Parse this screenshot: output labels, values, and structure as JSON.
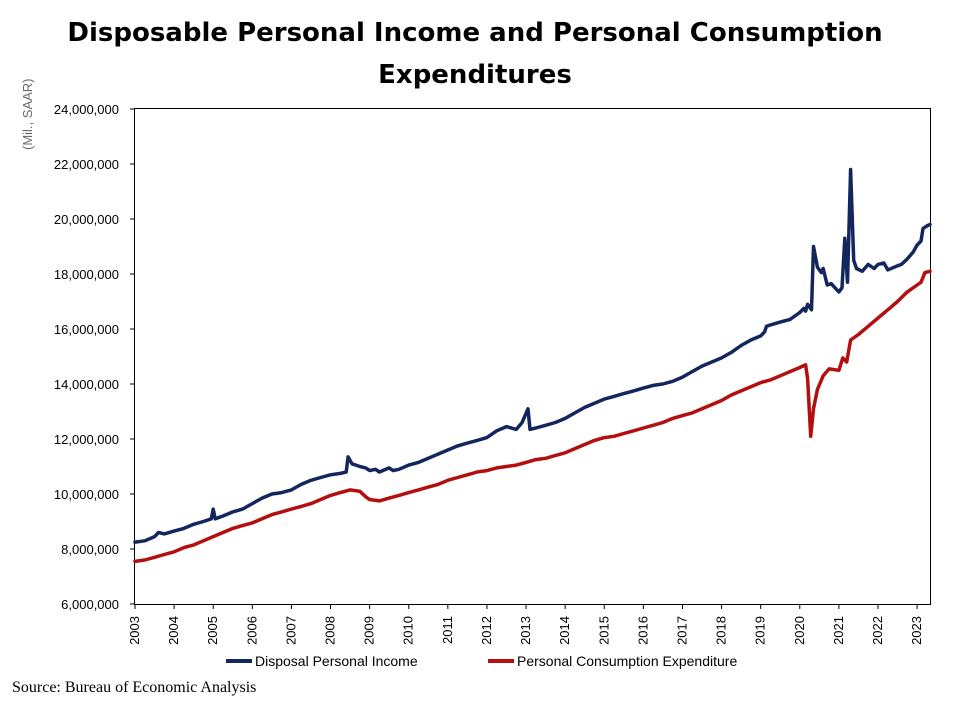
{
  "chart_data": {
    "type": "line",
    "title": "Disposable Personal Income and Personal Consumption Expenditures",
    "ylabel": "(Mil., SAAR)",
    "xlabel": "",
    "ylim": [
      6000000,
      24000000
    ],
    "xlim": [
      2003.0,
      2023.33
    ],
    "yticks": [
      "6,000,000",
      "8,000,000",
      "10,000,000",
      "12,000,000",
      "14,000,000",
      "16,000,000",
      "18,000,000",
      "20,000,000",
      "22,000,000",
      "24,000,000"
    ],
    "ytick_values": [
      6000000,
      8000000,
      10000000,
      12000000,
      14000000,
      16000000,
      18000000,
      20000000,
      22000000,
      24000000
    ],
    "xticks": [
      "2003",
      "2004",
      "2005",
      "2006",
      "2007",
      "2008",
      "2009",
      "2010",
      "2011",
      "2012",
      "2013",
      "2014",
      "2015",
      "2016",
      "2017",
      "2018",
      "2019",
      "2020",
      "2021",
      "2022",
      "2023"
    ],
    "grid": false,
    "legend": "bottom",
    "series": [
      {
        "name": "Disposal Personal Income",
        "color": "#13275e",
        "points": [
          [
            2003.0,
            8250000
          ],
          [
            2003.25,
            8300000
          ],
          [
            2003.5,
            8450000
          ],
          [
            2003.6,
            8600000
          ],
          [
            2003.75,
            8550000
          ],
          [
            2004.0,
            8650000
          ],
          [
            2004.25,
            8750000
          ],
          [
            2004.5,
            8900000
          ],
          [
            2004.75,
            9000000
          ],
          [
            2004.95,
            9100000
          ],
          [
            2005.0,
            9450000
          ],
          [
            2005.05,
            9100000
          ],
          [
            2005.25,
            9200000
          ],
          [
            2005.5,
            9350000
          ],
          [
            2005.75,
            9450000
          ],
          [
            2006.0,
            9650000
          ],
          [
            2006.25,
            9850000
          ],
          [
            2006.5,
            10000000
          ],
          [
            2006.75,
            10050000
          ],
          [
            2007.0,
            10150000
          ],
          [
            2007.25,
            10350000
          ],
          [
            2007.5,
            10500000
          ],
          [
            2007.75,
            10600000
          ],
          [
            2008.0,
            10700000
          ],
          [
            2008.25,
            10750000
          ],
          [
            2008.4,
            10800000
          ],
          [
            2008.45,
            11350000
          ],
          [
            2008.55,
            11100000
          ],
          [
            2008.75,
            11000000
          ],
          [
            2008.9,
            10950000
          ],
          [
            2009.0,
            10850000
          ],
          [
            2009.15,
            10900000
          ],
          [
            2009.25,
            10800000
          ],
          [
            2009.5,
            10950000
          ],
          [
            2009.6,
            10850000
          ],
          [
            2009.75,
            10900000
          ],
          [
            2010.0,
            11050000
          ],
          [
            2010.25,
            11150000
          ],
          [
            2010.5,
            11300000
          ],
          [
            2010.75,
            11450000
          ],
          [
            2011.0,
            11600000
          ],
          [
            2011.25,
            11750000
          ],
          [
            2011.5,
            11850000
          ],
          [
            2011.75,
            11950000
          ],
          [
            2012.0,
            12050000
          ],
          [
            2012.25,
            12300000
          ],
          [
            2012.5,
            12450000
          ],
          [
            2012.75,
            12350000
          ],
          [
            2012.9,
            12600000
          ],
          [
            2013.05,
            13100000
          ],
          [
            2013.1,
            12350000
          ],
          [
            2013.25,
            12400000
          ],
          [
            2013.5,
            12500000
          ],
          [
            2013.75,
            12600000
          ],
          [
            2014.0,
            12750000
          ],
          [
            2014.25,
            12950000
          ],
          [
            2014.5,
            13150000
          ],
          [
            2014.75,
            13300000
          ],
          [
            2015.0,
            13450000
          ],
          [
            2015.25,
            13550000
          ],
          [
            2015.5,
            13650000
          ],
          [
            2015.75,
            13750000
          ],
          [
            2016.0,
            13850000
          ],
          [
            2016.25,
            13950000
          ],
          [
            2016.5,
            14000000
          ],
          [
            2016.75,
            14100000
          ],
          [
            2017.0,
            14250000
          ],
          [
            2017.25,
            14450000
          ],
          [
            2017.5,
            14650000
          ],
          [
            2017.75,
            14800000
          ],
          [
            2018.0,
            14950000
          ],
          [
            2018.25,
            15150000
          ],
          [
            2018.5,
            15400000
          ],
          [
            2018.75,
            15600000
          ],
          [
            2019.0,
            15750000
          ],
          [
            2019.1,
            15900000
          ],
          [
            2019.15,
            16100000
          ],
          [
            2019.25,
            16150000
          ],
          [
            2019.5,
            16250000
          ],
          [
            2019.75,
            16350000
          ],
          [
            2020.0,
            16600000
          ],
          [
            2020.1,
            16750000
          ],
          [
            2020.15,
            16650000
          ],
          [
            2020.2,
            16900000
          ],
          [
            2020.3,
            16700000
          ],
          [
            2020.35,
            19000000
          ],
          [
            2020.45,
            18250000
          ],
          [
            2020.55,
            18050000
          ],
          [
            2020.6,
            18200000
          ],
          [
            2020.7,
            17600000
          ],
          [
            2020.8,
            17650000
          ],
          [
            2020.9,
            17500000
          ],
          [
            2021.0,
            17350000
          ],
          [
            2021.08,
            17500000
          ],
          [
            2021.15,
            19300000
          ],
          [
            2021.22,
            17700000
          ],
          [
            2021.3,
            21800000
          ],
          [
            2021.38,
            18500000
          ],
          [
            2021.45,
            18200000
          ],
          [
            2021.6,
            18100000
          ],
          [
            2021.75,
            18350000
          ],
          [
            2021.9,
            18200000
          ],
          [
            2022.0,
            18350000
          ],
          [
            2022.15,
            18400000
          ],
          [
            2022.25,
            18150000
          ],
          [
            2022.5,
            18300000
          ],
          [
            2022.6,
            18350000
          ],
          [
            2022.75,
            18550000
          ],
          [
            2022.9,
            18800000
          ],
          [
            2023.0,
            19050000
          ],
          [
            2023.1,
            19200000
          ],
          [
            2023.15,
            19650000
          ],
          [
            2023.25,
            19750000
          ],
          [
            2023.33,
            19800000
          ]
        ]
      },
      {
        "name": "Personal Consumption Expenditure",
        "color": "#b40f0f",
        "points": [
          [
            2003.0,
            7550000
          ],
          [
            2003.25,
            7600000
          ],
          [
            2003.5,
            7700000
          ],
          [
            2003.75,
            7800000
          ],
          [
            2004.0,
            7900000
          ],
          [
            2004.25,
            8050000
          ],
          [
            2004.5,
            8150000
          ],
          [
            2004.75,
            8300000
          ],
          [
            2005.0,
            8450000
          ],
          [
            2005.25,
            8600000
          ],
          [
            2005.5,
            8750000
          ],
          [
            2005.75,
            8850000
          ],
          [
            2006.0,
            8950000
          ],
          [
            2006.25,
            9100000
          ],
          [
            2006.5,
            9250000
          ],
          [
            2006.75,
            9350000
          ],
          [
            2007.0,
            9450000
          ],
          [
            2007.25,
            9550000
          ],
          [
            2007.5,
            9650000
          ],
          [
            2007.75,
            9800000
          ],
          [
            2008.0,
            9950000
          ],
          [
            2008.25,
            10050000
          ],
          [
            2008.5,
            10150000
          ],
          [
            2008.75,
            10100000
          ],
          [
            2008.9,
            9900000
          ],
          [
            2009.0,
            9800000
          ],
          [
            2009.25,
            9750000
          ],
          [
            2009.5,
            9850000
          ],
          [
            2009.75,
            9950000
          ],
          [
            2010.0,
            10050000
          ],
          [
            2010.25,
            10150000
          ],
          [
            2010.5,
            10250000
          ],
          [
            2010.75,
            10350000
          ],
          [
            2011.0,
            10500000
          ],
          [
            2011.25,
            10600000
          ],
          [
            2011.5,
            10700000
          ],
          [
            2011.75,
            10800000
          ],
          [
            2012.0,
            10850000
          ],
          [
            2012.25,
            10950000
          ],
          [
            2012.5,
            11000000
          ],
          [
            2012.75,
            11050000
          ],
          [
            2013.0,
            11150000
          ],
          [
            2013.25,
            11250000
          ],
          [
            2013.5,
            11300000
          ],
          [
            2013.75,
            11400000
          ],
          [
            2014.0,
            11500000
          ],
          [
            2014.25,
            11650000
          ],
          [
            2014.5,
            11800000
          ],
          [
            2014.75,
            11950000
          ],
          [
            2015.0,
            12050000
          ],
          [
            2015.25,
            12100000
          ],
          [
            2015.5,
            12200000
          ],
          [
            2015.75,
            12300000
          ],
          [
            2016.0,
            12400000
          ],
          [
            2016.25,
            12500000
          ],
          [
            2016.5,
            12600000
          ],
          [
            2016.75,
            12750000
          ],
          [
            2017.0,
            12850000
          ],
          [
            2017.25,
            12950000
          ],
          [
            2017.5,
            13100000
          ],
          [
            2017.75,
            13250000
          ],
          [
            2018.0,
            13400000
          ],
          [
            2018.25,
            13600000
          ],
          [
            2018.5,
            13750000
          ],
          [
            2018.75,
            13900000
          ],
          [
            2019.0,
            14050000
          ],
          [
            2019.25,
            14150000
          ],
          [
            2019.5,
            14300000
          ],
          [
            2019.75,
            14450000
          ],
          [
            2020.0,
            14600000
          ],
          [
            2020.15,
            14700000
          ],
          [
            2020.2,
            14200000
          ],
          [
            2020.28,
            12100000
          ],
          [
            2020.35,
            13100000
          ],
          [
            2020.45,
            13800000
          ],
          [
            2020.6,
            14300000
          ],
          [
            2020.75,
            14550000
          ],
          [
            2021.0,
            14500000
          ],
          [
            2021.1,
            14950000
          ],
          [
            2021.2,
            14800000
          ],
          [
            2021.3,
            15600000
          ],
          [
            2021.5,
            15800000
          ],
          [
            2021.75,
            16100000
          ],
          [
            2022.0,
            16400000
          ],
          [
            2022.25,
            16700000
          ],
          [
            2022.5,
            17000000
          ],
          [
            2022.75,
            17350000
          ],
          [
            2023.0,
            17600000
          ],
          [
            2023.1,
            17700000
          ],
          [
            2023.2,
            18050000
          ],
          [
            2023.33,
            18100000
          ]
        ]
      }
    ]
  },
  "footer": {
    "source": "Source: Bureau of Economic Analysis"
  }
}
